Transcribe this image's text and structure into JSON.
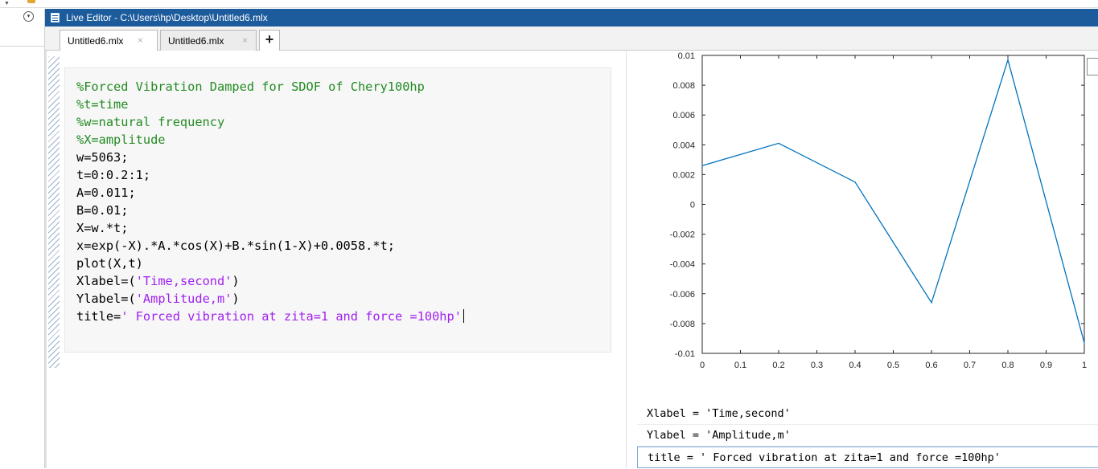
{
  "window": {
    "title": "Live Editor - C:\\Users\\hp\\Desktop\\Untitled6.mlx",
    "accent": "#1c5b9c"
  },
  "tabs": [
    {
      "label": "Untitled6.mlx",
      "active": true
    },
    {
      "label": "Untitled6.mlx",
      "active": false
    }
  ],
  "add_tab_label": "+",
  "close_glyph": "×",
  "collapse_glyph": "▾",
  "code_lines": [
    {
      "parts": [
        {
          "t": "%Forced Vibration Damped for SDOF of Chery100hp",
          "c": "comment"
        }
      ]
    },
    {
      "parts": [
        {
          "t": "%t=time",
          "c": "comment"
        }
      ]
    },
    {
      "parts": [
        {
          "t": "%w=natural frequency",
          "c": "comment"
        }
      ]
    },
    {
      "parts": [
        {
          "t": "%X=amplitude",
          "c": "comment"
        }
      ]
    },
    {
      "parts": [
        {
          "t": "w=5063;",
          "c": "plain"
        }
      ]
    },
    {
      "parts": [
        {
          "t": "t=0:0.2:1;",
          "c": "plain"
        }
      ]
    },
    {
      "parts": [
        {
          "t": "A=0.011;",
          "c": "plain"
        }
      ]
    },
    {
      "parts": [
        {
          "t": "B=0.01;",
          "c": "plain"
        }
      ]
    },
    {
      "parts": [
        {
          "t": "X=w.*t;",
          "c": "plain"
        }
      ]
    },
    {
      "parts": [
        {
          "t": "x=exp(-X).*A.*cos(X)+B.*sin(1-X)+0.0058.*t;",
          "c": "plain"
        }
      ]
    },
    {
      "parts": [
        {
          "t": "plot(X,t)",
          "c": "plain"
        }
      ]
    },
    {
      "parts": [
        {
          "t": "Xlabel=(",
          "c": "plain"
        },
        {
          "t": "'Time,second'",
          "c": "str"
        },
        {
          "t": ")",
          "c": "plain"
        }
      ]
    },
    {
      "parts": [
        {
          "t": "Ylabel=(",
          "c": "plain"
        },
        {
          "t": "'Amplitude,m'",
          "c": "str"
        },
        {
          "t": ")",
          "c": "plain"
        }
      ]
    },
    {
      "parts": [
        {
          "t": "title=",
          "c": "plain"
        },
        {
          "t": "' Forced vibration at zita=1 and force =100hp'",
          "c": "str"
        }
      ],
      "caret": true
    }
  ],
  "colors": {
    "comment": "#228b22",
    "string": "#a020f0",
    "line": "#0072bd"
  },
  "chart_data": {
    "type": "line",
    "x": [
      0,
      0.2,
      0.4,
      0.6,
      0.8,
      1.0
    ],
    "y": [
      0.0026,
      0.0041,
      0.0015,
      -0.0066,
      0.0097,
      -0.0093
    ],
    "xlim": [
      0,
      1
    ],
    "ylim": [
      -0.01,
      0.01
    ],
    "xticks": [
      0,
      0.1,
      0.2,
      0.3,
      0.4,
      0.5,
      0.6,
      0.7,
      0.8,
      0.9,
      1
    ],
    "xtick_labels": [
      "0",
      "0.1",
      "0.2",
      "0.3",
      "0.4",
      "0.5",
      "0.6",
      "0.7",
      "0.8",
      "0.9",
      "1"
    ],
    "yticks": [
      -0.01,
      -0.008,
      -0.006,
      -0.004,
      -0.002,
      0,
      0.002,
      0.004,
      0.006,
      0.008,
      0.01
    ],
    "ytick_labels": [
      "-0.01",
      "-0.008",
      "-0.006",
      "-0.004",
      "-0.002",
      "0",
      "0.002",
      "0.004",
      "0.006",
      "0.008",
      "0.01"
    ],
    "grid": false,
    "title": "",
    "xlabel": "",
    "ylabel": ""
  },
  "outputs": [
    "Xlabel = 'Time,second'",
    "Ylabel = 'Amplitude,m'",
    "title = ' Forced vibration at zita=1 and force =100hp'"
  ]
}
